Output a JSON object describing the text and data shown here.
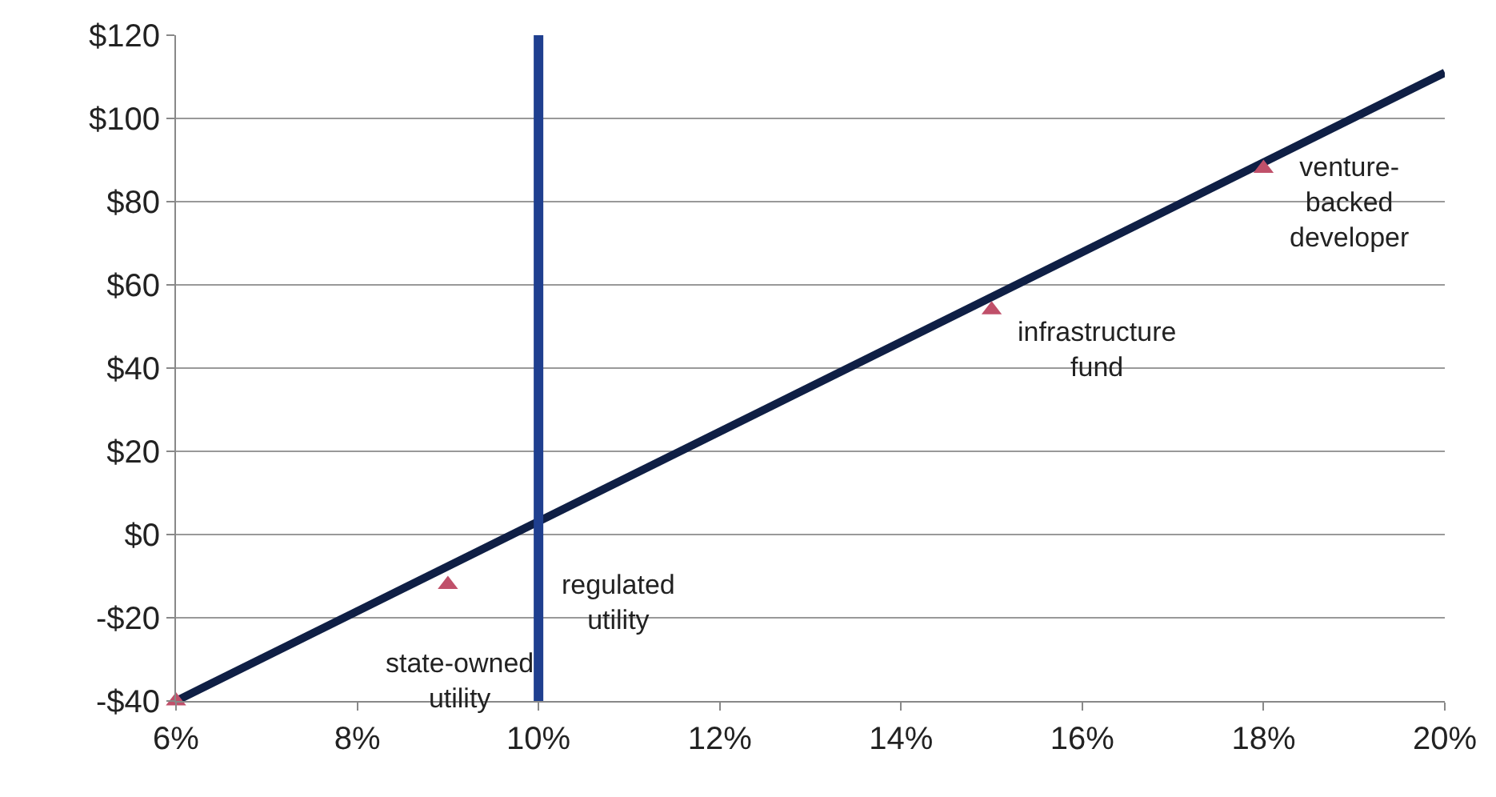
{
  "chart_data": {
    "type": "line",
    "series": [
      {
        "color": "#0f1f45",
        "x": [
          6,
          20
        ],
        "values": [
          -40,
          111
        ],
        "marker": "none"
      },
      {
        "type": "scatter",
        "color": "#c0506a",
        "x": [
          6,
          9,
          15,
          18
        ],
        "values": [
          -40,
          -12,
          54,
          88
        ],
        "marker": "triangle"
      }
    ],
    "xlim": [
      6,
      20
    ],
    "xticks": [
      {
        "value": 6,
        "label": "6%"
      },
      {
        "value": 8,
        "label": "8%"
      },
      {
        "value": 10,
        "label": "10%"
      },
      {
        "value": 12,
        "label": "12%"
      },
      {
        "value": 14,
        "label": "14%"
      },
      {
        "value": 16,
        "label": "16%"
      },
      {
        "value": 18,
        "label": "18%"
      },
      {
        "value": 20,
        "label": "20%"
      }
    ],
    "ylim": [
      -40,
      120
    ],
    "yticks": [
      {
        "value": -40,
        "label": "-$40"
      },
      {
        "value": -20,
        "label": "-$20"
      },
      {
        "value": 0,
        "label": "$0"
      },
      {
        "value": 20,
        "label": "$20"
      },
      {
        "value": 40,
        "label": "$40"
      },
      {
        "value": 60,
        "label": "$60"
      },
      {
        "value": 80,
        "label": "$80"
      },
      {
        "value": 100,
        "label": "$100"
      },
      {
        "value": 120,
        "label": "$120"
      }
    ],
    "grid": "y",
    "ref_lines": [
      {
        "axis": "x",
        "value": 10,
        "color": "#1f3f8f"
      }
    ],
    "annotations": [
      {
        "text": "state-owned\nutility",
        "x": 9,
        "y": -12
      },
      {
        "text": "regulated\nutility",
        "x": 10,
        "y": 0
      },
      {
        "text": "infrastructure\nfund",
        "x": 15,
        "y": 54
      },
      {
        "text": "venture-\nbacked\ndeveloper",
        "x": 18,
        "y": 88
      }
    ]
  }
}
